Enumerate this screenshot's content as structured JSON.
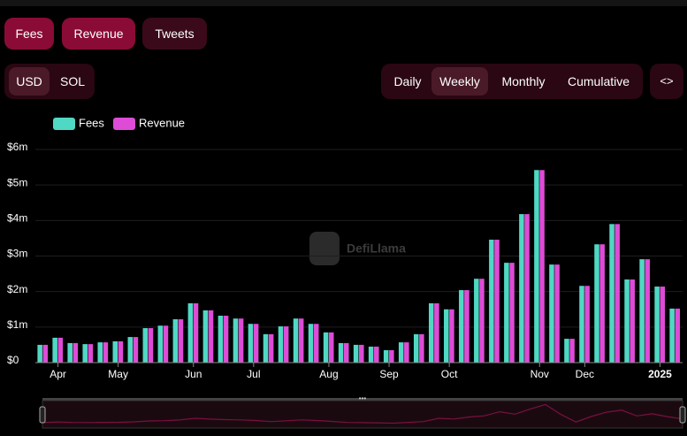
{
  "ui": {
    "metric_tabs": [
      "Fees",
      "Revenue",
      "Tweets"
    ],
    "currency_options": [
      "USD",
      "SOL"
    ],
    "period_options": [
      "Daily",
      "Weekly",
      "Monthly",
      "Cumulative"
    ],
    "watermark": "DefiLlama"
  },
  "chart_data": {
    "type": "bar",
    "categories": [
      null,
      "Apr",
      null,
      null,
      null,
      "May",
      null,
      null,
      null,
      null,
      "Jun",
      null,
      null,
      null,
      "Jul",
      null,
      null,
      null,
      null,
      "Aug",
      null,
      null,
      null,
      "Sep",
      null,
      null,
      null,
      "Oct",
      null,
      null,
      null,
      null,
      null,
      "Nov",
      null,
      null,
      "Dec",
      null,
      null,
      null,
      null,
      "2025",
      null
    ],
    "series": [
      {
        "name": "Fees",
        "color": "#4fd8c4",
        "values": [
          0.5,
          0.7,
          0.55,
          0.52,
          0.57,
          0.6,
          0.72,
          0.97,
          1.04,
          1.22,
          1.67,
          1.47,
          1.32,
          1.24,
          1.09,
          0.8,
          1.02,
          1.24,
          1.09,
          0.85,
          0.55,
          0.5,
          0.45,
          0.35,
          0.57,
          0.8,
          1.67,
          1.5,
          2.04,
          2.36,
          3.46,
          2.81,
          4.18,
          5.42,
          2.76,
          0.67,
          2.16,
          3.33,
          3.9,
          2.34,
          2.91,
          2.14,
          1.52
        ]
      },
      {
        "name": "Revenue",
        "color": "#de4bd6",
        "values": [
          0.5,
          0.7,
          0.55,
          0.52,
          0.57,
          0.6,
          0.72,
          0.97,
          1.04,
          1.22,
          1.67,
          1.47,
          1.32,
          1.24,
          1.09,
          0.8,
          1.02,
          1.24,
          1.09,
          0.85,
          0.55,
          0.5,
          0.45,
          0.35,
          0.57,
          0.8,
          1.67,
          1.5,
          2.04,
          2.36,
          3.46,
          2.81,
          4.18,
          5.42,
          2.76,
          0.67,
          2.16,
          3.33,
          3.9,
          2.34,
          2.91,
          2.14,
          1.52
        ]
      }
    ],
    "ylim": [
      0,
      6
    ],
    "yticks": [
      {
        "value": 0,
        "label": "$0"
      },
      {
        "value": 1,
        "label": "$1m"
      },
      {
        "value": 2,
        "label": "$2m"
      },
      {
        "value": 3,
        "label": "$3m"
      },
      {
        "value": 4,
        "label": "$4m"
      },
      {
        "value": 5,
        "label": "$5m"
      },
      {
        "value": 6,
        "label": "$6m"
      }
    ],
    "grid": true,
    "legend": "top-left"
  }
}
